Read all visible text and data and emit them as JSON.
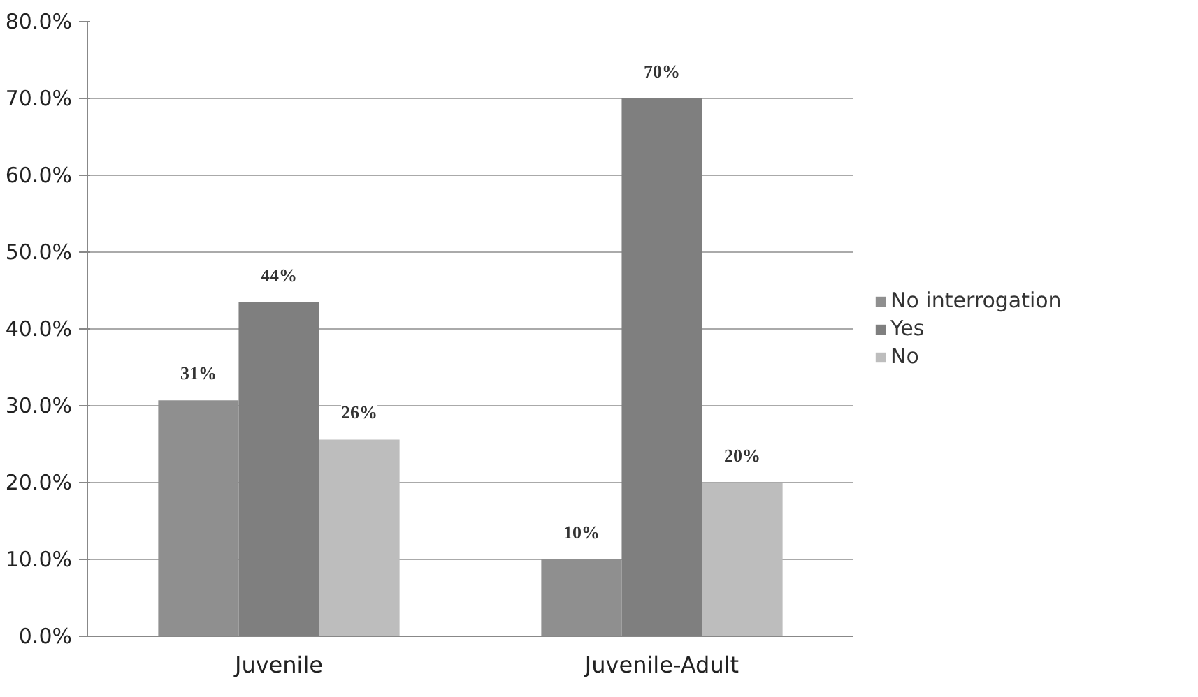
{
  "chart_data": {
    "type": "bar",
    "categories": [
      "Juvenile",
      "Juvenile-Adult"
    ],
    "series": [
      {
        "name": "No interrogation",
        "color": "#8f8f8f",
        "values": [
          30.7,
          10
        ],
        "value_labels": [
          "31%",
          "10%"
        ]
      },
      {
        "name": "Yes",
        "color": "#7f7f7f",
        "values": [
          43.5,
          70
        ],
        "value_labels": [
          "44%",
          "70%"
        ]
      },
      {
        "name": "No",
        "color": "#bdbdbd",
        "values": [
          25.6,
          20
        ],
        "value_labels": [
          "26%",
          "20%"
        ]
      }
    ],
    "ylim": [
      0,
      80
    ],
    "yticks": [
      {
        "value": 0,
        "label": "0.0%"
      },
      {
        "value": 10,
        "label": "10.0%"
      },
      {
        "value": 20,
        "label": "20.0%"
      },
      {
        "value": 30,
        "label": "30.0%"
      },
      {
        "value": 40,
        "label": "40.0%"
      },
      {
        "value": 50,
        "label": "50.0%"
      },
      {
        "value": 60,
        "label": "60.0%"
      },
      {
        "value": 70,
        "label": "70.0%"
      },
      {
        "value": 80,
        "label": "80.0%"
      }
    ],
    "grid": "y",
    "legend": "right"
  }
}
